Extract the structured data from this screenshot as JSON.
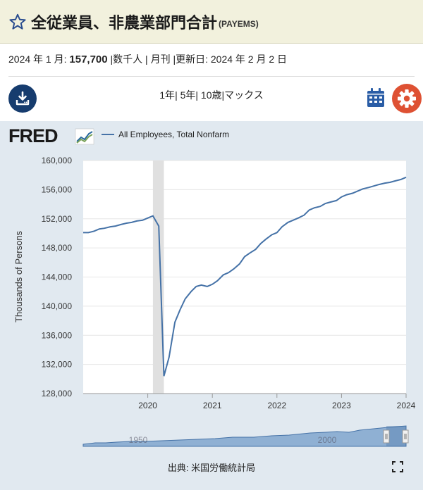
{
  "header": {
    "title": "全従業員、非農業部門合計",
    "series_code": "(PAYEMS)"
  },
  "meta": {
    "date_label": "2024 年 1 月:",
    "value": "157,700",
    "rest": "|数千人 | 月刊 |更新日: 2024 年 2 月 2 日"
  },
  "toolbar": {
    "ranges": [
      "1年",
      "5年",
      "10歳",
      "マックス"
    ]
  },
  "chart": {
    "legend_label": "All Employees, Total Nonfarm",
    "logo_text": "FRED",
    "source": "出典: 米国労働統計局",
    "navigator_labels": [
      "1950",
      "2000"
    ],
    "colors": {
      "line": "#4572a7",
      "recession": "#e0e0e0",
      "navigator_fill": "#8fb0d3"
    }
  },
  "chart_data": {
    "type": "line",
    "title": "",
    "xlabel": "",
    "ylabel": "Thousands of Persons",
    "ylim": [
      128000,
      160000
    ],
    "yticks": [
      "160,000",
      "156,000",
      "152,000",
      "148,000",
      "144,000",
      "140,000",
      "136,000",
      "132,000",
      "128,000"
    ],
    "xticks": [
      "2020",
      "2021",
      "2022",
      "2023",
      "2024"
    ],
    "xlim": [
      2019.0,
      2024.0
    ],
    "grid": true,
    "recession": [
      2020.08,
      2020.25
    ],
    "series": [
      {
        "name": "All Employees, Total Nonfarm",
        "x": [
          2019.0,
          2019.08,
          2019.17,
          2019.25,
          2019.33,
          2019.42,
          2019.5,
          2019.58,
          2019.67,
          2019.75,
          2019.83,
          2019.92,
          2020.0,
          2020.08,
          2020.17,
          2020.25,
          2020.33,
          2020.42,
          2020.5,
          2020.58,
          2020.67,
          2020.75,
          2020.83,
          2020.92,
          2021.0,
          2021.08,
          2021.17,
          2021.25,
          2021.33,
          2021.42,
          2021.5,
          2021.58,
          2021.67,
          2021.75,
          2021.83,
          2021.92,
          2022.0,
          2022.08,
          2022.17,
          2022.25,
          2022.33,
          2022.42,
          2022.5,
          2022.58,
          2022.67,
          2022.75,
          2022.83,
          2022.92,
          2023.0,
          2023.08,
          2023.17,
          2023.25,
          2023.33,
          2023.42,
          2023.5,
          2023.58,
          2023.67,
          2023.75,
          2023.83,
          2023.92,
          2024.0
        ],
        "y": [
          150100,
          150100,
          150300,
          150600,
          150700,
          150900,
          151000,
          151200,
          151400,
          151500,
          151700,
          151800,
          152100,
          152400,
          151000,
          130400,
          133000,
          137800,
          139500,
          141000,
          142000,
          142700,
          142900,
          142700,
          143000,
          143500,
          144300,
          144600,
          145100,
          145800,
          146800,
          147300,
          147800,
          148600,
          149200,
          149800,
          150100,
          150900,
          151500,
          151800,
          152100,
          152500,
          153200,
          153500,
          153700,
          154100,
          154300,
          154500,
          155000,
          155300,
          155500,
          155800,
          156100,
          156300,
          156500,
          156700,
          156900,
          157000,
          157200,
          157400,
          157700
        ]
      }
    ]
  }
}
